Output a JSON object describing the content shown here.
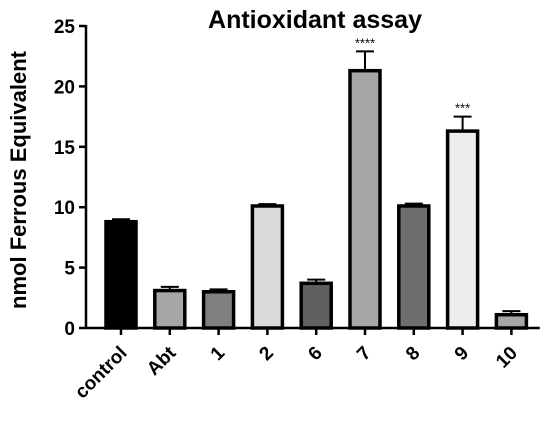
{
  "chart_data": {
    "type": "bar",
    "title": "Antioxidant assay",
    "ylabel": "nmol Ferrous Equivalent",
    "xlabel": "",
    "ylim": [
      0,
      25
    ],
    "yticks": [
      0,
      5,
      10,
      15,
      20,
      25
    ],
    "grid": false,
    "categories": [
      "control",
      "Abt",
      "1",
      "2",
      "6",
      "7",
      "8",
      "9",
      "10"
    ],
    "values": [
      8.8,
      3.1,
      3.0,
      10.1,
      3.7,
      21.3,
      10.1,
      16.3,
      1.1
    ],
    "errors": [
      0.2,
      0.3,
      0.2,
      0.15,
      0.3,
      1.6,
      0.2,
      1.2,
      0.3
    ],
    "fills": [
      "#000000",
      "#a6a6a6",
      "#808080",
      "#d9d9d9",
      "#606060",
      "#a6a6a6",
      "#6e6e6e",
      "#ededed",
      "#a6a6a6"
    ],
    "annotations": [
      "",
      "",
      "",
      "",
      "",
      "****",
      "",
      "***",
      ""
    ]
  }
}
